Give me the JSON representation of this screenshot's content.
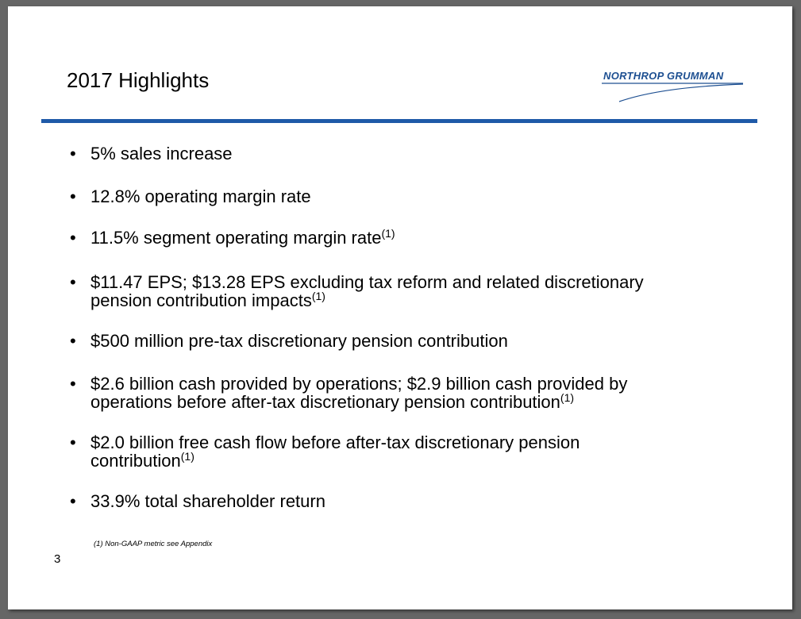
{
  "slide": {
    "title": "2017 Highlights",
    "logo": {
      "text": "NORTHROP GRUMMAN",
      "color": "#1d4f91"
    },
    "rule_color": "#1f5aa8",
    "bullets": [
      {
        "text": "5% sales increase",
        "sup": ""
      },
      {
        "text": "12.8% operating margin rate",
        "sup": ""
      },
      {
        "text": "11.5% segment operating margin rate",
        "sup": "(1)"
      },
      {
        "line1": "$11.47 EPS; $13.28 EPS excluding tax reform and related discretionary",
        "line2": "pension contribution impacts",
        "sup": "(1)"
      },
      {
        "text": "$500 million pre-tax discretionary pension contribution",
        "sup": ""
      },
      {
        "line1": "$2.6 billion cash provided by operations; $2.9 billion cash provided by",
        "line2": "operations before after-tax discretionary pension contribution",
        "sup": "(1)"
      },
      {
        "line1": "$2.0 billion free cash flow before after-tax discretionary pension",
        "line2": "contribution",
        "sup": "(1)"
      },
      {
        "text": "33.9% total shareholder return",
        "sup": ""
      }
    ],
    "footnote": "(1)  Non-GAAP metric see Appendix",
    "page_number": "3"
  }
}
